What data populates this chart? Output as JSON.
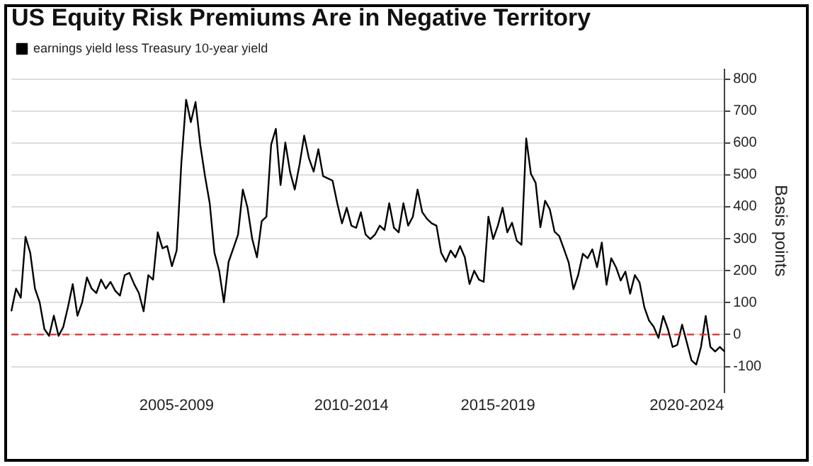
{
  "chart_data": {
    "type": "line",
    "title": "US Equity Risk Premiums Are in Negative Territory",
    "ylabel": "Basis points",
    "categories": [
      null,
      null,
      null,
      null,
      null,
      null,
      null,
      null,
      null,
      null,
      null,
      null,
      null,
      null,
      null,
      null,
      null,
      null,
      null,
      null,
      null,
      null,
      null,
      null,
      null,
      null,
      null,
      null,
      null,
      null,
      null,
      null,
      null,
      null,
      null,
      "2005-2009",
      null,
      null,
      null,
      null,
      null,
      null,
      null,
      null,
      null,
      null,
      null,
      null,
      null,
      null,
      null,
      null,
      null,
      null,
      null,
      null,
      null,
      null,
      null,
      null,
      null,
      null,
      null,
      null,
      null,
      null,
      null,
      null,
      null,
      null,
      null,
      null,
      "2010-2014",
      null,
      null,
      null,
      null,
      null,
      null,
      null,
      null,
      null,
      null,
      null,
      null,
      null,
      null,
      null,
      null,
      null,
      null,
      null,
      null,
      null,
      null,
      null,
      null,
      null,
      null,
      null,
      null,
      null,
      null,
      "2015-2019",
      null,
      null,
      null,
      null,
      null,
      null,
      null,
      null,
      null,
      null,
      null,
      null,
      null,
      null,
      null,
      null,
      null,
      null,
      null,
      null,
      null,
      null,
      null,
      null,
      null,
      null,
      null,
      null,
      null,
      null,
      null,
      null,
      null,
      null,
      null,
      null,
      null,
      null,
      null,
      "2020-2024",
      null,
      null,
      null,
      null,
      null,
      null,
      null,
      null
    ],
    "series": [
      {
        "name": "earnings yield less Treasury 10-year yield",
        "color": "#000000",
        "values": [
          73,
          144,
          115,
          306,
          256,
          144,
          101,
          17,
          -4,
          59,
          -4,
          24,
          87,
          158,
          59,
          101,
          179,
          144,
          130,
          172,
          144,
          165,
          137,
          122,
          186,
          193,
          158,
          130,
          73,
          186,
          172,
          320,
          270,
          277,
          214,
          263,
          538,
          735,
          665,
          728,
          594,
          496,
          411,
          256,
          200,
          101,
          228,
          270,
          313,
          454,
          397,
          299,
          242,
          355,
          369,
          594,
          644,
          468,
          601,
          510,
          454,
          531,
          623,
          552,
          510,
          580,
          496,
          489,
          482,
          411,
          348,
          397,
          341,
          334,
          383,
          313,
          299,
          313,
          341,
          327,
          411,
          334,
          320,
          411,
          341,
          369,
          454,
          383,
          362,
          348,
          341,
          256,
          228,
          263,
          242,
          277,
          242,
          158,
          200,
          172,
          165,
          369,
          299,
          341,
          397,
          320,
          350,
          294,
          281,
          614,
          503,
          475,
          336,
          419,
          392,
          322,
          308,
          267,
          225,
          142,
          186,
          253,
          239,
          267,
          211,
          288,
          156,
          239,
          211,
          169,
          197,
          128,
          186,
          163,
          86,
          44,
          24,
          -11,
          58,
          17,
          -39,
          -32,
          31,
          -25,
          -81,
          -94,
          -39,
          58,
          -39,
          -53,
          -39,
          -53
        ]
      }
    ],
    "ylim": [
      -180,
      830
    ],
    "yticks": [
      -100,
      0,
      100,
      200,
      300,
      400,
      500,
      600,
      700,
      800
    ],
    "ref_lines": [
      {
        "axis": "y",
        "value": 0,
        "color": "#e0332f",
        "line_style": "dashed"
      }
    ],
    "grid": "y",
    "legend": "top left",
    "marker": "none",
    "line_style": "solid"
  }
}
